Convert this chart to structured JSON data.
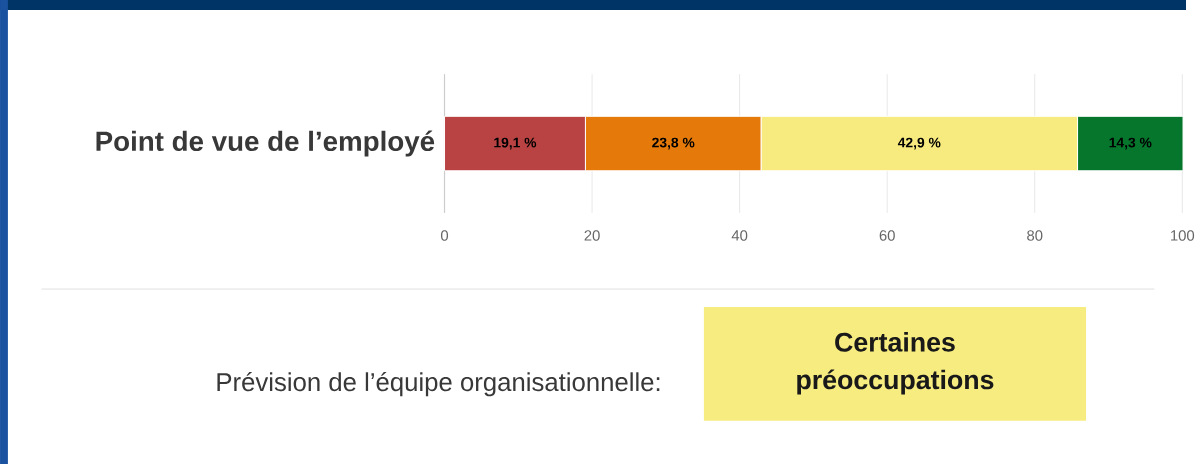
{
  "chart_data": {
    "type": "bar",
    "orientation": "horizontal",
    "stacked": true,
    "categories": [
      "Point de vue de l’employé"
    ],
    "series": [
      {
        "color": "#b94343",
        "values": [
          19.1
        ],
        "value_labels": [
          "19,1 %"
        ]
      },
      {
        "color": "#e57a0a",
        "values": [
          23.8
        ],
        "value_labels": [
          "23,8 %"
        ]
      },
      {
        "color": "#f7eb7f",
        "values": [
          42.9
        ],
        "value_labels": [
          "42,9 %"
        ]
      },
      {
        "color": "#05762c",
        "values": [
          14.3
        ],
        "value_labels": [
          "14,3 %"
        ]
      }
    ],
    "xlim": [
      0,
      100.1
    ],
    "xticks": [
      0,
      20,
      40,
      60,
      80,
      100
    ],
    "grid": "x",
    "annotations": [
      "Prévision de l’équipe organisationnelle:",
      "Certaines préoccupations"
    ]
  }
}
